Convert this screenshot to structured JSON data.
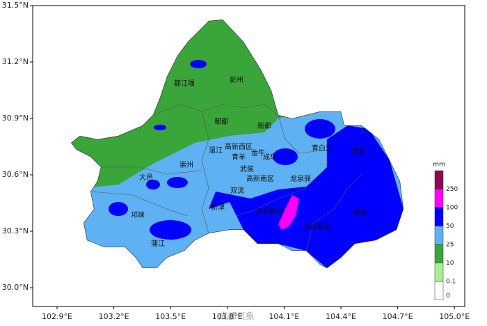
{
  "map": {
    "latitude_labels": [
      "31.5°N",
      "31.2°N",
      "30.9°N",
      "30.6°N",
      "30.3°N",
      "30.0°N"
    ],
    "longitude_labels": [
      "102.9°E",
      "103.2°E",
      "103.5°E",
      "103.8°E",
      "104.1°E",
      "104.4°E",
      "104.7°E",
      "105.0°E"
    ],
    "districts": [
      "都江堰",
      "彭州",
      "郫都",
      "新都",
      "温江",
      "高新西区",
      "金牛",
      "青羊",
      "成华",
      "青白江",
      "金堂",
      "崇州",
      "武侯",
      "大邑",
      "高新南区",
      "龙泉驿",
      "双流",
      "新津",
      "天府新区",
      "简阳",
      "邛崃",
      "东部新区",
      "蒲江"
    ],
    "legend": {
      "unit": "mm",
      "levels": [
        250,
        100,
        50,
        25,
        10,
        0.1,
        0
      ]
    },
    "watermark": "成都气象"
  }
}
